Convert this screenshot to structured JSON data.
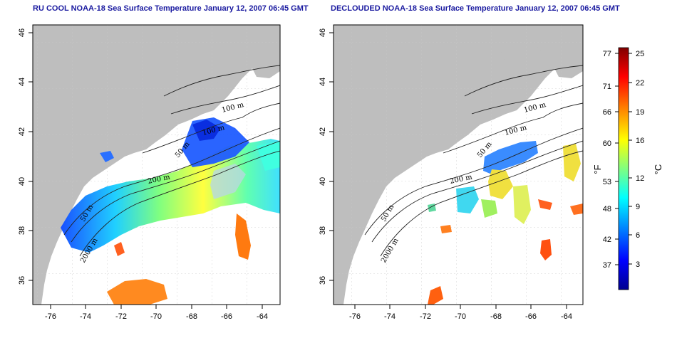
{
  "left_map": {
    "title": "RU COOL NOAA-18 Sea Surface Temperature January 12, 2007 06:45 GMT",
    "contour_labels": [
      "100 m",
      "100 m",
      "50 m",
      "200 m",
      "50 m",
      "2000 m"
    ]
  },
  "right_map": {
    "title": "DECLOUDED NOAA-18 Sea Surface Temperature January 12, 2007 06:45 GMT",
    "contour_labels": [
      "100 m",
      "100 m",
      "50 m",
      "200 m",
      "50 m",
      "2000 m"
    ]
  },
  "axes": {
    "lat_ticks": [
      "46",
      "44",
      "42",
      "40",
      "38",
      "36"
    ],
    "lon_ticks": [
      "-76",
      "-74",
      "-72",
      "-70",
      "-68",
      "-66",
      "-64"
    ]
  },
  "colorbar": {
    "fahrenheit_ticks": [
      "77",
      "71",
      "66",
      "60",
      "53",
      "48",
      "42",
      "37"
    ],
    "celsius_ticks": [
      "25",
      "22",
      "19",
      "16",
      "12",
      "9",
      "6",
      "3"
    ],
    "fahrenheit_label": "°F",
    "celsius_label": "°C",
    "colors": [
      "#00008f",
      "#0000ff",
      "#0080ff",
      "#00ffff",
      "#80ff80",
      "#ffff00",
      "#ff8000",
      "#ff0000",
      "#800000"
    ]
  },
  "colors": {
    "land": "#bebebe",
    "water": "#ffffff",
    "title": "#1a1aa0"
  }
}
